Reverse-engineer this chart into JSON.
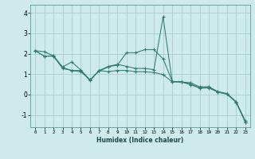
{
  "xlabel": "Humidex (Indice chaleur)",
  "background_color": "#ceeaea",
  "grid_color": "#a8cece",
  "line_color": "#2e7d70",
  "xlim": [
    -0.5,
    23.5
  ],
  "ylim": [
    -1.6,
    4.4
  ],
  "yticks": [
    -1,
    0,
    1,
    2,
    3,
    4
  ],
  "xticks": [
    0,
    1,
    2,
    3,
    4,
    5,
    6,
    7,
    8,
    9,
    10,
    11,
    12,
    13,
    14,
    15,
    16,
    17,
    18,
    19,
    20,
    21,
    22,
    23
  ],
  "series": [
    [
      2.15,
      2.1,
      1.9,
      1.35,
      1.6,
      1.2,
      0.72,
      1.15,
      1.35,
      1.45,
      2.05,
      2.05,
      2.2,
      2.2,
      1.75,
      0.65,
      0.62,
      0.58,
      0.38,
      0.38,
      0.15,
      0.05,
      -0.35,
      -1.3
    ],
    [
      2.15,
      1.88,
      1.9,
      1.32,
      1.18,
      1.18,
      0.68,
      1.18,
      1.38,
      1.48,
      1.38,
      1.28,
      1.28,
      1.22,
      3.8,
      0.62,
      0.62,
      0.52,
      0.32,
      0.38,
      0.12,
      0.02,
      -0.38,
      -1.35
    ],
    [
      2.15,
      1.88,
      1.88,
      1.28,
      1.18,
      1.12,
      0.72,
      1.18,
      1.12,
      1.18,
      1.18,
      1.12,
      1.12,
      1.08,
      0.98,
      0.62,
      0.62,
      0.48,
      0.32,
      0.32,
      0.12,
      0.02,
      -0.38,
      -1.35
    ]
  ]
}
